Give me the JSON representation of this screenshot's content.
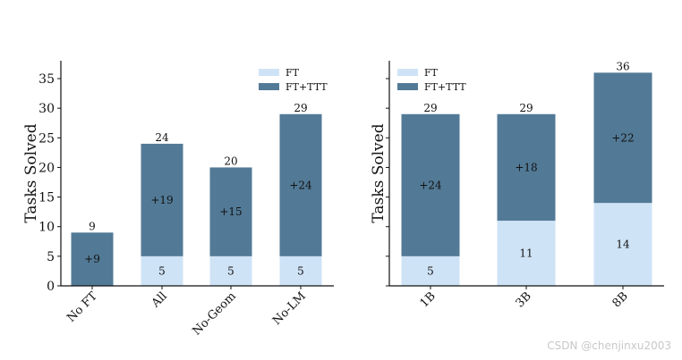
{
  "colors": {
    "FT": "#cfe3f6",
    "FT+TTT": "#527a96"
  },
  "watermark": "CSDN @chenjinxu2003",
  "chart_data": [
    {
      "type": "bar",
      "stacked": true,
      "ylabel": "Tasks Solved",
      "ylim": [
        0,
        38
      ],
      "yticks": [
        0,
        5,
        10,
        15,
        20,
        25,
        30,
        35
      ],
      "categories": [
        "No FT",
        "All",
        "No-Geom",
        "No-LM"
      ],
      "series": [
        {
          "name": "FT",
          "values": [
            0,
            5,
            5,
            5
          ],
          "labels": [
            "",
            "5",
            "5",
            "5"
          ]
        },
        {
          "name": "FT+TTT",
          "values": [
            9,
            19,
            15,
            24
          ],
          "labels": [
            "+9",
            "+19",
            "+15",
            "+24"
          ]
        }
      ],
      "totals": [
        "9",
        "24",
        "20",
        "29"
      ],
      "legend": "top-right",
      "grid": false
    },
    {
      "type": "bar",
      "stacked": true,
      "ylabel": "Tasks Solved",
      "ylim": [
        0,
        38
      ],
      "yticks": [
        0,
        5,
        10,
        15,
        20,
        25,
        30,
        35
      ],
      "show_ytick_labels": false,
      "categories": [
        "1B",
        "3B",
        "8B"
      ],
      "series": [
        {
          "name": "FT",
          "values": [
            5,
            11,
            14
          ],
          "labels": [
            "5",
            "11",
            "14"
          ]
        },
        {
          "name": "FT+TTT",
          "values": [
            24,
            18,
            22
          ],
          "labels": [
            "+24",
            "+18",
            "+22"
          ]
        }
      ],
      "totals": [
        "29",
        "29",
        "36"
      ],
      "legend": "top-left",
      "grid": false
    }
  ]
}
